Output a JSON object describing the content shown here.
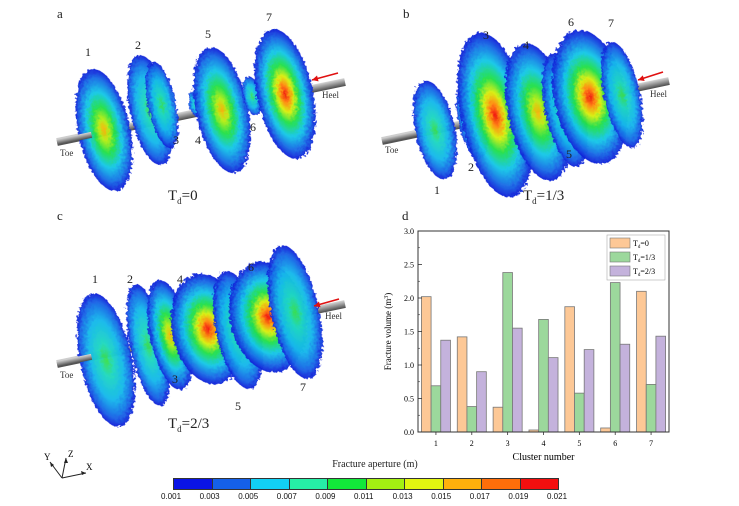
{
  "panels": [
    {
      "letter": "a",
      "td_prefix": "T",
      "td_sub": "d",
      "td_value": "=0",
      "labels": [
        "1",
        "2",
        "3",
        "4",
        "5",
        "6",
        "7"
      ],
      "toe": "Toe",
      "heel": "Heel"
    },
    {
      "letter": "b",
      "td_prefix": "T",
      "td_sub": "d",
      "td_value": "=1/3",
      "labels": [
        "1",
        "2",
        "3",
        "4",
        "5",
        "6",
        "7"
      ],
      "toe": "Toe",
      "heel": "Heel"
    },
    {
      "letter": "c",
      "td_prefix": "T",
      "td_sub": "d",
      "td_value": "=2/3",
      "labels": [
        "1",
        "2",
        "3",
        "4",
        "5",
        "6",
        "7"
      ],
      "toe": "Toe",
      "heel": "Heel"
    }
  ],
  "axes_triad": {
    "x": "X",
    "y": "Y",
    "z": "Z"
  },
  "colorbar": {
    "title": "Fracture aperture (m)",
    "ticks": [
      "0.001",
      "0.003",
      "0.005",
      "0.007",
      "0.009",
      "0.011",
      "0.013",
      "0.015",
      "0.017",
      "0.019",
      "0.021"
    ],
    "colors": [
      "#0a14e6",
      "#1560e8",
      "#12d0f4",
      "#26eea6",
      "#12e83a",
      "#a4f012",
      "#e2f510",
      "#ffb00c",
      "#ff6e0a",
      "#f30f0f"
    ]
  },
  "chart_data": {
    "panel_letter": "d",
    "type": "bar",
    "title": "",
    "xlabel": "Cluster number",
    "ylabel_main": "Fracture volume (m",
    "ylabel_sup": "3",
    "ylabel_end": ")",
    "categories": [
      "1",
      "2",
      "3",
      "4",
      "5",
      "6",
      "7"
    ],
    "ylim": [
      0,
      3.0
    ],
    "yticks": [
      "0.0",
      "0.5",
      "1.0",
      "1.5",
      "2.0",
      "2.5",
      "3.0"
    ],
    "grid": false,
    "legend_position": "top-right",
    "series": [
      {
        "name": "Td=0",
        "legend_prefix": "T",
        "legend_sub": "d",
        "legend_value": "=0",
        "color": "#fdc896",
        "values": [
          2.02,
          1.42,
          0.37,
          0.03,
          1.87,
          0.06,
          2.1
        ]
      },
      {
        "name": "Td=1/3",
        "legend_prefix": "T",
        "legend_sub": "d",
        "legend_value": "=1/3",
        "color": "#9cd89c",
        "values": [
          0.69,
          0.38,
          2.38,
          1.68,
          0.58,
          2.23,
          0.71
        ]
      },
      {
        "name": "Td=2/3",
        "legend_prefix": "T",
        "legend_sub": "d",
        "legend_value": "=2/3",
        "color": "#c4b2dc",
        "values": [
          1.37,
          0.9,
          1.55,
          1.11,
          1.23,
          1.31,
          1.43
        ]
      }
    ]
  }
}
